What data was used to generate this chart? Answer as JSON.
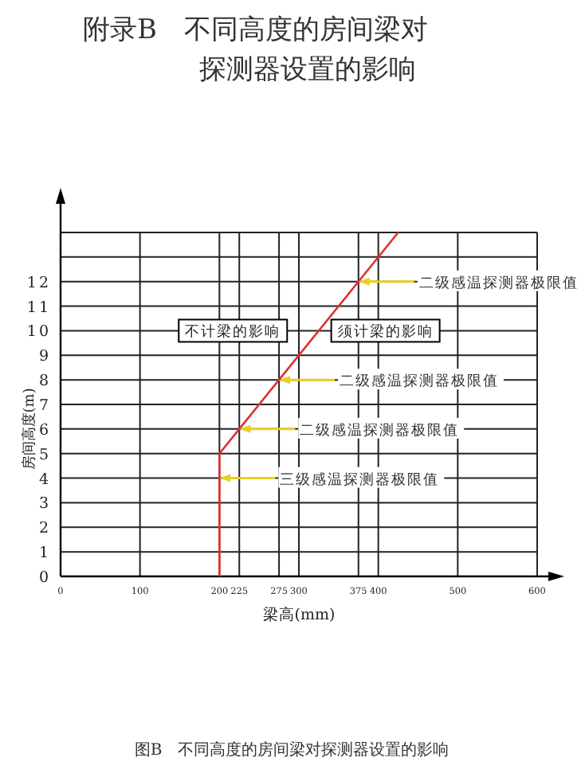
{
  "chart_data": {
    "type": "line",
    "title": "附录B　不同高度的房间梁对探测器设置的影响",
    "xlabel": "梁高(mm)",
    "ylabel": "房间高度(m)",
    "xlim": [
      0,
      600
    ],
    "ylim": [
      0,
      14
    ],
    "xticks": [
      0,
      100,
      200,
      225,
      275,
      300,
      375,
      400,
      500,
      600
    ],
    "yticks": [
      0,
      1,
      2,
      3,
      4,
      5,
      6,
      7,
      8,
      9,
      10,
      11,
      12,
      {
        "value": 13,
        "label": null
      },
      {
        "value": 14,
        "label": null
      }
    ],
    "grid": true,
    "marker": "none",
    "line_style": "solid",
    "series": [
      {
        "color": "#e03030",
        "x": [
          200,
          200,
          225,
          275,
          375,
          425
        ],
        "values": [
          0,
          5,
          6,
          8,
          12,
          14
        ]
      }
    ],
    "annotations": [
      {
        "text": "二级感温探测器极限值",
        "x": 375,
        "y": 12
      },
      {
        "text": "二级感温探测器极限值",
        "x": 275,
        "y": 8
      },
      {
        "text": "二级感温探测器极限值",
        "x": 225,
        "y": 6
      },
      {
        "text": "三级感温探测器极限值",
        "x": 200,
        "y": 4
      },
      "不计梁的影响",
      "须计梁的影响",
      "图B　不同高度的房间梁对探测器设置的影响"
    ]
  }
}
